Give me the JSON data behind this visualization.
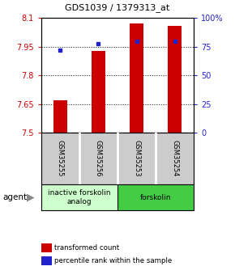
{
  "title": "GDS1039 / 1379313_at",
  "samples": [
    "GSM35255",
    "GSM35256",
    "GSM35253",
    "GSM35254"
  ],
  "bar_values": [
    7.67,
    7.93,
    8.07,
    8.06
  ],
  "percentile_values": [
    72,
    78,
    80,
    80
  ],
  "bar_color": "#cc0000",
  "dot_color": "#2222cc",
  "ylim_left": [
    7.5,
    8.1
  ],
  "ylim_right": [
    0,
    100
  ],
  "yticks_left": [
    7.5,
    7.65,
    7.8,
    7.95,
    8.1
  ],
  "ytick_labels_left": [
    "7.5",
    "7.65",
    "7.8",
    "7.95",
    "8.1"
  ],
  "yticks_right": [
    0,
    25,
    50,
    75,
    100
  ],
  "ytick_labels_right": [
    "0",
    "25",
    "50",
    "75",
    "100%"
  ],
  "groups": [
    {
      "label": "inactive forskolin\nanalog",
      "color": "#ccffcc",
      "indices": [
        0,
        1
      ]
    },
    {
      "label": "forskolin",
      "color": "#44cc44",
      "indices": [
        2,
        3
      ]
    }
  ],
  "agent_label": "agent",
  "legend_items": [
    {
      "color": "#cc0000",
      "label": "transformed count"
    },
    {
      "color": "#2222cc",
      "label": "percentile rank within the sample"
    }
  ],
  "bar_width": 0.35,
  "background_color": "#ffffff"
}
